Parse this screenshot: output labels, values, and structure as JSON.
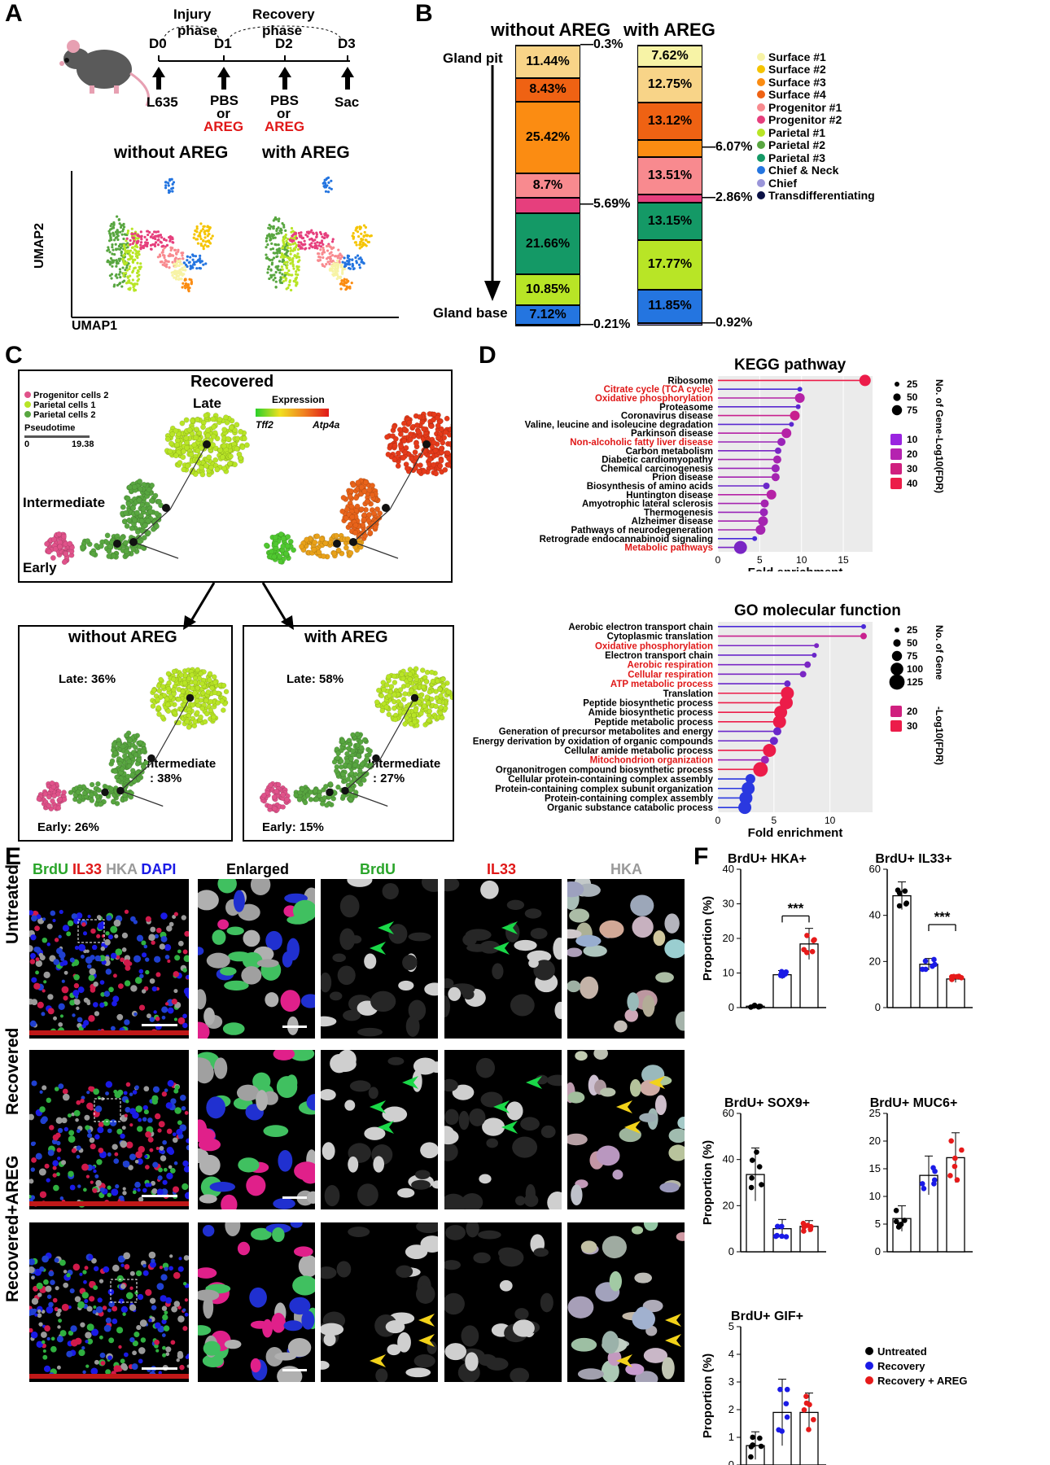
{
  "panels": {
    "A": "A",
    "B": "B",
    "C": "C",
    "D": "D",
    "E": "E",
    "F": "F"
  },
  "panelA": {
    "days": [
      "D0",
      "D1",
      "D2",
      "D3"
    ],
    "phases": [
      [
        "Injury",
        "phase"
      ],
      [
        "Recovery",
        "phase"
      ]
    ],
    "treat": [
      "L635",
      "PBS",
      "or",
      "AREG",
      "PBS",
      "or",
      "AREG",
      "Sac"
    ],
    "umap_titles": [
      "without AREG",
      "with AREG"
    ],
    "xlabel": "UMAP1",
    "ylabel": "UMAP2"
  },
  "panelB": {
    "titles": [
      "without AREG",
      "with AREG"
    ],
    "left_labels": [
      "Gland pit",
      "Gland base"
    ],
    "colors": {
      "Surface #1": "#f7f3a6",
      "Surface #2": "#f5c400",
      "Surface #3": "#fb8c12",
      "Surface #4": "#ef6213",
      "Progenitor #1": "#f88a8f",
      "Progenitor #2": "#e63f7d",
      "Parietal #1": "#b8e526",
      "Parietal #2": "#58a640",
      "Parietal #3": "#149966",
      "Chief & Neck": "#2475e0",
      "Chief": "#9a95d9",
      "Transdifferentiating": "#0b1145"
    },
    "legend": [
      "Surface #1",
      "Surface #2",
      "Surface #3",
      "Surface #4",
      "Progenitor #1",
      "Progenitor #2",
      "Parietal #1",
      "Parietal #2",
      "Parietal #3",
      "Chief & Neck",
      "Chief",
      "Transdifferentiating"
    ],
    "bars": [
      {
        "name": "without AREG",
        "segments": [
          {
            "cat": "Transdifferentiating",
            "pct": 0.3,
            "label": "0.3%",
            "side": "out"
          },
          {
            "cat": "Surface #3",
            "pct": 11.44,
            "label": "11.44%",
            "c": "#f8d488"
          },
          {
            "cat": "Surface #4",
            "pct": 8.43,
            "label": "8.43%",
            "c": "#ef6213"
          },
          {
            "cat": "Surface #3",
            "pct": 25.42,
            "label": "25.42%",
            "c": "#fb8c12"
          },
          {
            "cat": "Progenitor #1",
            "pct": 8.7,
            "label": "8.7%",
            "c": "#f88a8f"
          },
          {
            "cat": "Progenitor #2",
            "pct": 5.69,
            "label": "5.69%",
            "side": "out",
            "c": "#e63f7d"
          },
          {
            "cat": "Parietal #3",
            "pct": 21.66,
            "label": "21.66%",
            "c": "#149966"
          },
          {
            "cat": "Parietal #1",
            "pct": 10.85,
            "label": "10.85%",
            "c": "#b8e526"
          },
          {
            "cat": "Chief & Neck",
            "pct": 7.12,
            "label": "7.12%",
            "c": "#2475e0"
          },
          {
            "cat": "Transdifferentiating",
            "pct": 0.21,
            "label": "0.21%",
            "side": "out",
            "c": "#0b1145"
          }
        ]
      },
      {
        "name": "with AREG",
        "segments": [
          {
            "cat": "Transdifferentiating",
            "pct": 0.3,
            "c": "#0b1145"
          },
          {
            "cat": "Surface #1",
            "pct": 7.62,
            "label": "7.62%",
            "c": "#f7f3a6"
          },
          {
            "cat": "Surface #3",
            "pct": 12.75,
            "label": "12.75%",
            "c": "#f8d488"
          },
          {
            "cat": "Surface #4",
            "pct": 13.12,
            "label": "13.12%",
            "c": "#ef6213"
          },
          {
            "cat": "Surface #3",
            "pct": 6.07,
            "label": "6.07%",
            "side": "out",
            "c": "#fb8c12"
          },
          {
            "cat": "Progenitor #1",
            "pct": 13.51,
            "label": "13.51%",
            "c": "#f88a8f"
          },
          {
            "cat": "Progenitor #2",
            "pct": 2.86,
            "label": "2.86%",
            "side": "out",
            "c": "#e63f7d"
          },
          {
            "cat": "Parietal #3",
            "pct": 13.15,
            "label": "13.15%",
            "c": "#149966"
          },
          {
            "cat": "Parietal #1",
            "pct": 17.77,
            "label": "17.77%",
            "c": "#b8e526"
          },
          {
            "cat": "Chief & Neck",
            "pct": 11.85,
            "label": "11.85%",
            "c": "#2475e0"
          },
          {
            "cat": "Chief",
            "pct": 0.92,
            "label": "0.92%",
            "side": "out",
            "c": "#9a95d9"
          }
        ]
      }
    ]
  },
  "panelC": {
    "title": "Recovered",
    "legend": [
      "Progenitor cells 2",
      "Parietal cells 1",
      "Parietal cells 2"
    ],
    "legend_colors": [
      "#e0528a",
      "#b8e526",
      "#58a640"
    ],
    "pseudotime_label": "Pseudotime",
    "pseudotime_range": [
      "0",
      "19.38"
    ],
    "stages": [
      "Late",
      "Intermediate",
      "Early"
    ],
    "expression_label": "Expression",
    "genes": [
      "Tff2",
      "Atp4a"
    ],
    "sub": [
      {
        "title": "without AREG",
        "late": "Late: 36%",
        "inter1": "Intermediate",
        "inter2": ": 38%",
        "early": "Early: 26%"
      },
      {
        "title": "with AREG",
        "late": "Late: 58%",
        "inter1": "Intermediate",
        "inter2": ": 27%",
        "early": "Early: 15%"
      }
    ]
  },
  "panelD": {
    "kegg": {
      "title": "KEGG pathway",
      "xlabel": "Fold enrichment",
      "xticks": [
        "0",
        "5",
        "10",
        "15"
      ],
      "xmax": 18.5,
      "size_title": "No. of Gene",
      "size_ticks": [
        "25",
        "50",
        "75"
      ],
      "color_title": "-Log10(FDR)",
      "color_ticks": [
        "10",
        "20",
        "30",
        "40"
      ],
      "terms": [
        {
          "t": "Ribosome",
          "v": 17.6,
          "red": false,
          "c": "#ec1c49",
          "s": 7
        },
        {
          "t": "Citrate cycle (TCA cycle)",
          "v": 9.8,
          "red": true,
          "c": "#4a2ad8",
          "s": 3
        },
        {
          "t": "Oxidative phosphorylation",
          "v": 9.8,
          "red": true,
          "c": "#b522a6",
          "s": 6
        },
        {
          "t": "Proteasome",
          "v": 9.6,
          "red": false,
          "c": "#5a28d0",
          "s": 3
        },
        {
          "t": "Coronavirus disease",
          "v": 9.2,
          "red": false,
          "c": "#c8208e",
          "s": 6
        },
        {
          "t": "Valine, leucine and isoleucine degradation",
          "v": 8.8,
          "red": false,
          "c": "#5a28d0",
          "s": 3
        },
        {
          "t": "Parkinson disease",
          "v": 8.2,
          "red": false,
          "c": "#b522a6",
          "s": 6
        },
        {
          "t": "Non-alcoholic fatty liver disease",
          "v": 7.6,
          "red": true,
          "c": "#9a24b8",
          "s": 5
        },
        {
          "t": "Carbon metabolism",
          "v": 7.2,
          "red": false,
          "c": "#7a26c4",
          "s": 4
        },
        {
          "t": "Diabetic cardiomyopathy",
          "v": 7.1,
          "red": false,
          "c": "#a524b0",
          "s": 5
        },
        {
          "t": "Chemical carcinogenesis",
          "v": 6.9,
          "red": false,
          "c": "#9a24b8",
          "s": 5
        },
        {
          "t": "Prion disease",
          "v": 6.9,
          "red": false,
          "c": "#a524b0",
          "s": 5
        },
        {
          "t": "Biosynthesis of amino acids",
          "v": 5.8,
          "red": false,
          "c": "#6a27ca",
          "s": 4
        },
        {
          "t": "Huntington disease",
          "v": 6.4,
          "red": false,
          "c": "#b522a6",
          "s": 6
        },
        {
          "t": "Amyotrophic lateral sclerosis",
          "v": 5.6,
          "red": false,
          "c": "#a524b0",
          "s": 5
        },
        {
          "t": "Thermogenesis",
          "v": 5.5,
          "red": false,
          "c": "#9a24b8",
          "s": 5
        },
        {
          "t": "Alzheimer disease",
          "v": 5.4,
          "red": false,
          "c": "#a524b0",
          "s": 6
        },
        {
          "t": "Pathways of neurodegeneration",
          "v": 5.1,
          "red": false,
          "c": "#a524b0",
          "s": 6
        },
        {
          "t": "Retrograde endocannabinoid signaling",
          "v": 4.4,
          "red": false,
          "c": "#4a2ad8",
          "s": 3
        },
        {
          "t": "Metabolic pathways",
          "v": 2.7,
          "red": true,
          "c": "#7a26c4",
          "s": 8
        }
      ]
    },
    "go": {
      "title": "GO molecular function",
      "xlabel": "Fold enrichment",
      "xticks": [
        "0",
        "5",
        "10"
      ],
      "xmax": 13.8,
      "size_title": "No. of Gene",
      "size_ticks": [
        "25",
        "50",
        "75",
        "100",
        "125"
      ],
      "color_title": "-Log10(FDR)",
      "color_ticks": [
        "20",
        "30"
      ],
      "terms": [
        {
          "t": "Aerobic electron transport chain",
          "v": 13.0,
          "red": false,
          "c": "#4a2ad8",
          "s": 3
        },
        {
          "t": "Cytoplasmic translation",
          "v": 13.0,
          "red": false,
          "c": "#c8208e",
          "s": 4
        },
        {
          "t": "Oxidative phosphorylation",
          "v": 8.8,
          "red": true,
          "c": "#7a26c4",
          "s": 3
        },
        {
          "t": "Electron transport chain",
          "v": 8.6,
          "red": false,
          "c": "#6a27ca",
          "s": 3
        },
        {
          "t": "Aerobic respiration",
          "v": 8.0,
          "red": true,
          "c": "#7a26c4",
          "s": 4
        },
        {
          "t": "Cellular respiration",
          "v": 7.6,
          "red": true,
          "c": "#7a26c4",
          "s": 4
        },
        {
          "t": "ATP metabolic process",
          "v": 6.2,
          "red": true,
          "c": "#6a27ca",
          "s": 4
        },
        {
          "t": "Translation",
          "v": 6.2,
          "red": false,
          "c": "#ec1c49",
          "s": 8
        },
        {
          "t": "Peptide biosynthetic process",
          "v": 6.1,
          "red": false,
          "c": "#ec1c49",
          "s": 8
        },
        {
          "t": "Amide biosynthetic process",
          "v": 5.6,
          "red": false,
          "c": "#ec1c49",
          "s": 8
        },
        {
          "t": "Peptide metabolic process",
          "v": 5.5,
          "red": false,
          "c": "#ec1c49",
          "s": 8
        },
        {
          "t": "Generation of precursor metabolites and energy",
          "v": 5.3,
          "red": false,
          "c": "#6a27ca",
          "s": 5
        },
        {
          "t": "Energy derivation by oxidation of organic compounds",
          "v": 5.0,
          "red": false,
          "c": "#6a27ca",
          "s": 5
        },
        {
          "t": "Cellular amide metabolic process",
          "v": 4.6,
          "red": false,
          "c": "#ec1c49",
          "s": 8
        },
        {
          "t": "Mitochondrion organization",
          "v": 4.2,
          "red": true,
          "c": "#9a24b8",
          "s": 5
        },
        {
          "t": "Organonitrogen compound biosynthetic process",
          "v": 3.8,
          "red": false,
          "c": "#ec1c49",
          "s": 9
        },
        {
          "t": "Cellular protein-containing complex assembly",
          "v": 2.9,
          "red": false,
          "c": "#2a38e0",
          "s": 6
        },
        {
          "t": "Protein-containing complex subunit organization",
          "v": 2.7,
          "red": false,
          "c": "#2a38e0",
          "s": 8
        },
        {
          "t": "Protein-containing complex assembly",
          "v": 2.5,
          "red": false,
          "c": "#2a38e0",
          "s": 8
        },
        {
          "t": "Organic substance catabolic process",
          "v": 2.4,
          "red": false,
          "c": "#2a38e0",
          "s": 8
        }
      ]
    }
  },
  "panelE": {
    "header": {
      "brdu": "BrdU",
      "il33": "IL33",
      "hka": "HKA",
      "dapi": "DAPI"
    },
    "columns": [
      "Enlarged",
      "BrdU",
      "IL33",
      "HKA"
    ],
    "column_colors": [
      "#000000",
      "#2aa52a",
      "#e01818",
      "#9a9a9a"
    ],
    "rows": [
      "Untreated",
      "Recovered",
      "Recovered+AREG"
    ]
  },
  "panelF": {
    "ylabel": "Proportion (%)",
    "stars": "***",
    "legend": [
      {
        "label": "Untreated",
        "c": "#000000"
      },
      {
        "label": "Recovery",
        "c": "#1a1ae6"
      },
      {
        "label": "Recovery + AREG",
        "c": "#e61a1a"
      }
    ],
    "chart_data": [
      {
        "type": "bar",
        "title": "BrdU+ HKA+",
        "categories": [
          "Untreated",
          "Recovery",
          "Recovery + AREG"
        ],
        "values": [
          0.4,
          9.5,
          18.4
        ],
        "errors": [
          0.3,
          1.2,
          4.5
        ],
        "ylim": [
          0,
          40
        ],
        "yticks": [
          0,
          10,
          20,
          30,
          40
        ],
        "significance": [
          [
            1,
            2,
            "***"
          ]
        ]
      },
      {
        "type": "bar",
        "title": "BrdU+ IL33+",
        "categories": [
          "Untreated",
          "Recovery",
          "Recovery + AREG"
        ],
        "values": [
          48.5,
          18.8,
          12.4
        ],
        "errors": [
          6.0,
          2.5,
          1.5
        ],
        "ylim": [
          0,
          60
        ],
        "yticks": [
          0,
          20,
          40,
          60
        ],
        "significance": [
          [
            1,
            2,
            "***"
          ]
        ]
      },
      {
        "type": "bar",
        "title": "BrdU+ SOX9+",
        "categories": [
          "Untreated",
          "Recovery",
          "Recovery + AREG"
        ],
        "values": [
          33.5,
          10.0,
          11.0
        ],
        "errors": [
          11.5,
          4.0,
          2.5
        ],
        "ylim": [
          0,
          60
        ],
        "yticks": [
          0,
          20,
          40,
          60
        ]
      },
      {
        "type": "bar",
        "title": "BrdU+ MUC6+",
        "categories": [
          "Untreated",
          "Recovery",
          "Recovery + AREG"
        ],
        "values": [
          6.0,
          13.8,
          17.0
        ],
        "errors": [
          2.3,
          3.5,
          4.5
        ],
        "ylim": [
          0,
          25
        ],
        "yticks": [
          0,
          5,
          10,
          15,
          20,
          25
        ]
      },
      {
        "type": "bar",
        "title": "BrdU+ GIF+",
        "categories": [
          "Untreated",
          "Recovery",
          "Recovery + AREG"
        ],
        "values": [
          0.7,
          1.9,
          1.9
        ],
        "errors": [
          0.5,
          1.2,
          0.7
        ],
        "ylim": [
          0,
          5
        ],
        "yticks": [
          0,
          1,
          2,
          3,
          4,
          5
        ]
      }
    ]
  }
}
